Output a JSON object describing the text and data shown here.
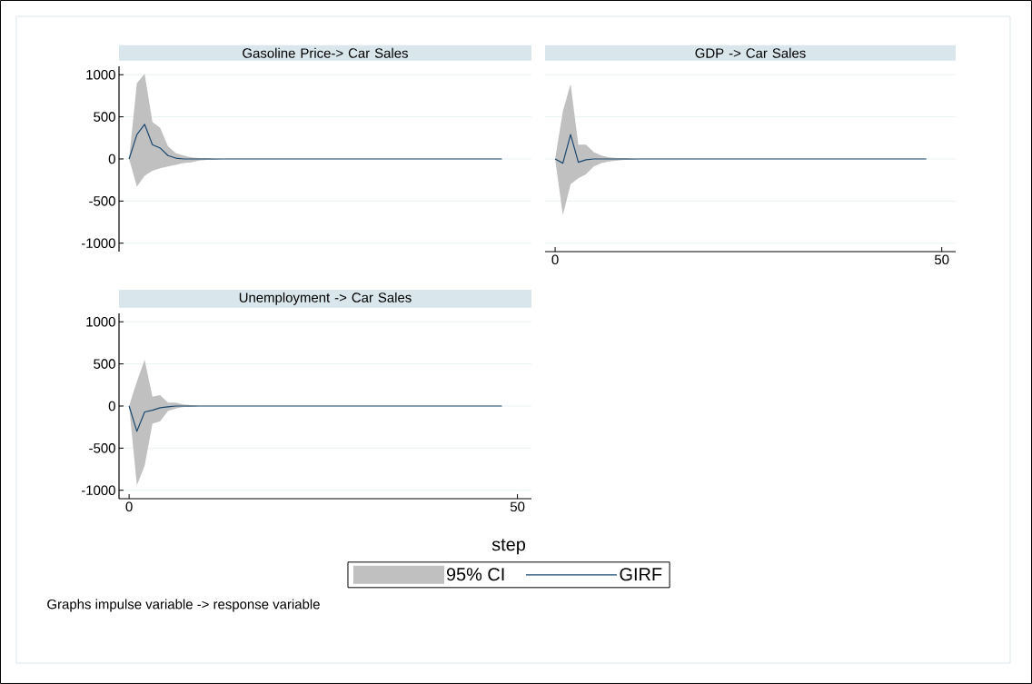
{
  "chart_data": [
    {
      "type": "line",
      "title": "Gasoline Price-> Car Sales",
      "x": [
        0,
        1,
        2,
        3,
        4,
        5,
        6,
        7,
        8,
        9,
        10,
        11,
        12,
        13,
        14,
        15,
        16,
        17,
        18,
        19,
        20,
        21,
        22,
        23,
        24,
        25,
        26,
        27,
        28,
        29,
        30,
        31,
        32,
        33,
        34,
        35,
        36,
        37,
        38,
        39,
        40,
        41,
        42,
        43,
        44,
        45,
        46,
        47,
        48
      ],
      "xlim": [
        -1.3,
        51.8
      ],
      "ylim": [
        -1100,
        1100
      ],
      "yticks": [
        -1000,
        -500,
        0,
        500,
        1000
      ],
      "grid": "y",
      "tick_labels": "y",
      "series": [
        {
          "color": "#1a476f",
          "values": [
            0,
            290,
            410,
            170,
            130,
            40,
            10,
            0,
            0,
            0,
            0,
            0,
            0,
            0,
            0,
            0,
            0,
            0,
            0,
            0,
            0,
            0,
            0,
            0,
            0,
            0,
            0,
            0,
            0,
            0,
            0,
            0,
            0,
            0,
            0,
            0,
            0,
            0,
            0,
            0,
            0,
            0,
            0,
            0,
            0,
            0,
            0,
            0,
            0
          ],
          "upper": [
            0,
            900,
            1010,
            440,
            370,
            150,
            70,
            40,
            20,
            10,
            10,
            0,
            0,
            0,
            0,
            0,
            0,
            0,
            0,
            0,
            0,
            0,
            0,
            0,
            0,
            0,
            0,
            0,
            0,
            0,
            0,
            0,
            0,
            0,
            0,
            0,
            0,
            0,
            0,
            0,
            0,
            0,
            0,
            0,
            0,
            0,
            0,
            0,
            0
          ],
          "lower": [
            0,
            -330,
            -200,
            -140,
            -110,
            -90,
            -70,
            -50,
            -40,
            -20,
            -10,
            -10,
            0,
            0,
            0,
            0,
            0,
            0,
            0,
            0,
            0,
            0,
            0,
            0,
            0,
            0,
            0,
            0,
            0,
            0,
            0,
            0,
            0,
            0,
            0,
            0,
            0,
            0,
            0,
            0,
            0,
            0,
            0,
            0,
            0,
            0,
            0,
            0,
            0
          ]
        }
      ]
    },
    {
      "type": "line",
      "title": "GDP -> Car Sales",
      "x": [
        0,
        1,
        2,
        3,
        4,
        5,
        6,
        7,
        8,
        9,
        10,
        11,
        12,
        13,
        14,
        15,
        16,
        17,
        18,
        19,
        20,
        21,
        22,
        23,
        24,
        25,
        26,
        27,
        28,
        29,
        30,
        31,
        32,
        33,
        34,
        35,
        36,
        37,
        38,
        39,
        40,
        41,
        42,
        43,
        44,
        45,
        46,
        47,
        48
      ],
      "xlim": [
        -1.3,
        51.8
      ],
      "xticks": [
        0,
        50
      ],
      "yticks": [
        -1000,
        -500,
        0,
        500,
        1000
      ],
      "grid": "y",
      "tick_labels": "x",
      "series": [
        {
          "color": "#1a476f",
          "values": [
            0,
            -50,
            290,
            -40,
            -10,
            0,
            0,
            0,
            0,
            0,
            0,
            0,
            0,
            0,
            0,
            0,
            0,
            0,
            0,
            0,
            0,
            0,
            0,
            0,
            0,
            0,
            0,
            0,
            0,
            0,
            0,
            0,
            0,
            0,
            0,
            0,
            0,
            0,
            0,
            0,
            0,
            0,
            0,
            0,
            0,
            0,
            0,
            0,
            0
          ],
          "upper": [
            0,
            570,
            890,
            170,
            170,
            80,
            40,
            20,
            10,
            10,
            0,
            0,
            0,
            0,
            0,
            0,
            0,
            0,
            0,
            0,
            0,
            0,
            0,
            0,
            0,
            0,
            0,
            0,
            0,
            0,
            0,
            0,
            0,
            0,
            0,
            0,
            0,
            0,
            0,
            0,
            0,
            0,
            0,
            0,
            0,
            0,
            0,
            0,
            0
          ],
          "lower": [
            0,
            -670,
            -300,
            -230,
            -180,
            -90,
            -50,
            -30,
            -20,
            -10,
            -10,
            0,
            0,
            0,
            0,
            0,
            0,
            0,
            0,
            0,
            0,
            0,
            0,
            0,
            0,
            0,
            0,
            0,
            0,
            0,
            0,
            0,
            0,
            0,
            0,
            0,
            0,
            0,
            0,
            0,
            0,
            0,
            0,
            0,
            0,
            0,
            0,
            0,
            0
          ]
        }
      ]
    },
    {
      "type": "line",
      "title": "Unemployment -> Car Sales",
      "xlabel": "step",
      "x": [
        0,
        1,
        2,
        3,
        4,
        5,
        6,
        7,
        8,
        9,
        10,
        11,
        12,
        13,
        14,
        15,
        16,
        17,
        18,
        19,
        20,
        21,
        22,
        23,
        24,
        25,
        26,
        27,
        28,
        29,
        30,
        31,
        32,
        33,
        34,
        35,
        36,
        37,
        38,
        39,
        40,
        41,
        42,
        43,
        44,
        45,
        46,
        47,
        48
      ],
      "xlim": [
        -1.3,
        51.8
      ],
      "xticks": [
        0,
        50
      ],
      "ylim": [
        -1100,
        1100
      ],
      "yticks": [
        -1000,
        -500,
        0,
        500,
        1000
      ],
      "grid": "y",
      "legend": "bottom",
      "annotations": [
        "95% CI",
        "Graphs  impulse variable -> response variable"
      ],
      "series": [
        {
          "name": "GIRF",
          "color": "#1a476f",
          "values": [
            0,
            -300,
            -70,
            -50,
            -20,
            -10,
            0,
            0,
            0,
            0,
            0,
            0,
            0,
            0,
            0,
            0,
            0,
            0,
            0,
            0,
            0,
            0,
            0,
            0,
            0,
            0,
            0,
            0,
            0,
            0,
            0,
            0,
            0,
            0,
            0,
            0,
            0,
            0,
            0,
            0,
            0,
            0,
            0,
            0,
            0,
            0,
            0,
            0,
            0
          ],
          "upper": [
            0,
            290,
            550,
            110,
            130,
            40,
            40,
            20,
            10,
            0,
            0,
            0,
            0,
            0,
            0,
            0,
            0,
            0,
            0,
            0,
            0,
            0,
            0,
            0,
            0,
            0,
            0,
            0,
            0,
            0,
            0,
            0,
            0,
            0,
            0,
            0,
            0,
            0,
            0,
            0,
            0,
            0,
            0,
            0,
            0,
            0,
            0,
            0,
            0
          ],
          "lower": [
            0,
            -940,
            -710,
            -210,
            -180,
            -60,
            -30,
            -10,
            -10,
            0,
            0,
            0,
            0,
            0,
            0,
            0,
            0,
            0,
            0,
            0,
            0,
            0,
            0,
            0,
            0,
            0,
            0,
            0,
            0,
            0,
            0,
            0,
            0,
            0,
            0,
            0,
            0,
            0,
            0,
            0,
            0,
            0,
            0,
            0,
            0,
            0,
            0,
            0,
            0
          ]
        }
      ]
    }
  ]
}
